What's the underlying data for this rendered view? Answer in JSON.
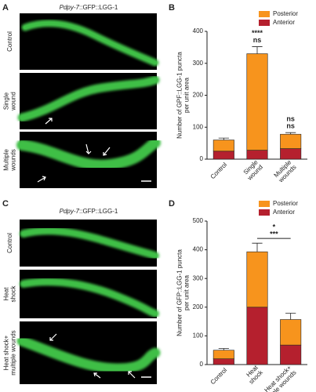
{
  "panels": [
    {
      "label": "A",
      "title_italic": "Pdpy-7",
      "title_rest": "::GFP::LGG-1",
      "rows": [
        "Control",
        "Single\nwound",
        "Multiple\nwounds"
      ]
    },
    {
      "label": "B"
    },
    {
      "label": "C",
      "title_italic": "Pdpy-7",
      "title_rest": "::GFP::LGG-1",
      "rows": [
        "Control",
        "Heat\nshock",
        "Heat shock+\nmultiple wounds"
      ]
    },
    {
      "label": "D"
    }
  ],
  "chart_data": [
    {
      "type": "stacked_bar",
      "y_label": "Number of GPF::LGG-1 puncta\nper unit area",
      "categories": [
        "Control",
        "Single\nwound",
        "Multiple\nwounds"
      ],
      "series": [
        {
          "name": "Anterior",
          "color": "#b5202e",
          "values": [
            25,
            28,
            33
          ],
          "errors": [
            3,
            5,
            5
          ]
        },
        {
          "name": "Posterior",
          "color": "#f7941d",
          "values": [
            35,
            302,
            45
          ],
          "errors": [
            6,
            22,
            5
          ]
        }
      ],
      "ylim": [
        0,
        400
      ],
      "yticks": [
        0,
        100,
        200,
        300,
        400
      ],
      "legend": "upper right",
      "annotations": [
        {
          "text": "ns",
          "color": "#333333",
          "categories": [
            1
          ]
        },
        {
          "text": "****",
          "color": "#f7941d",
          "categories": [
            1
          ]
        },
        {
          "text": "ns",
          "color": "#333333",
          "categories": [
            2
          ]
        },
        {
          "text": "ns",
          "color": "#f7941d",
          "categories": [
            2
          ]
        }
      ]
    },
    {
      "type": "stacked_bar",
      "y_label": "Number of GFP::LGG-1 puncta\nper unit area",
      "categories": [
        "Control",
        "Heat\nshock",
        "Heat shock+\nMultiple wounds"
      ],
      "series": [
        {
          "name": "Anterior",
          "color": "#b5202e",
          "values": [
            20,
            200,
            68
          ],
          "errors": [
            3,
            30,
            15
          ]
        },
        {
          "name": "Posterior",
          "color": "#f7941d",
          "values": [
            30,
            193,
            89
          ],
          "errors": [
            6,
            30,
            22
          ]
        }
      ],
      "ylim": [
        0,
        500
      ],
      "yticks": [
        0,
        100,
        200,
        300,
        400,
        500
      ],
      "legend": "upper right",
      "annotations": [
        {
          "text": "***",
          "color": "#b5202e",
          "categories": [
            1,
            2
          ]
        },
        {
          "text": "*",
          "color": "#f7941d",
          "categories": [
            1,
            2
          ]
        }
      ]
    }
  ]
}
